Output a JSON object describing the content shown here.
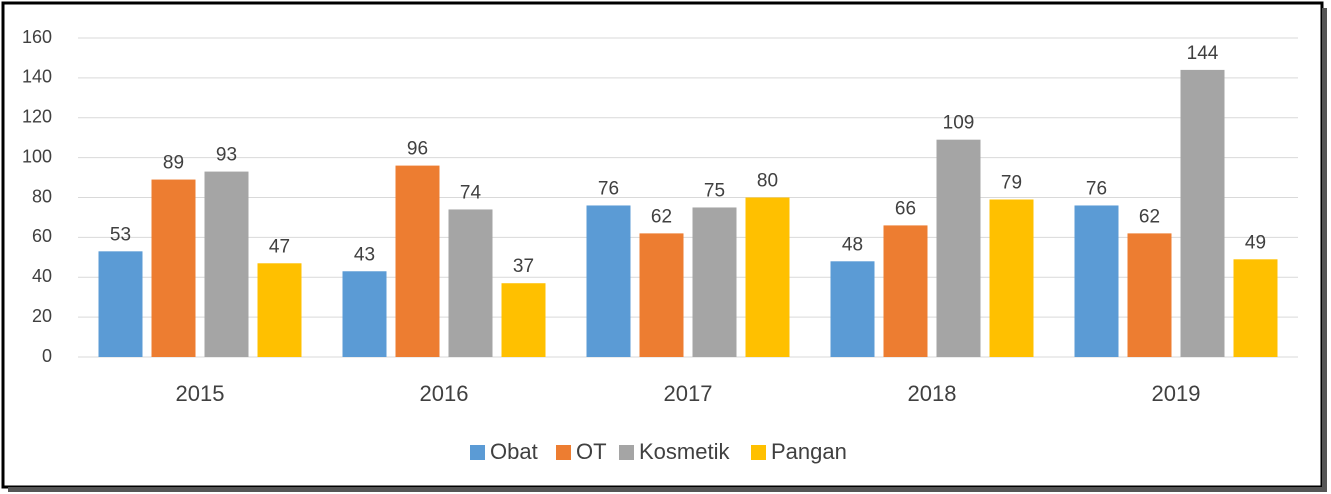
{
  "chart_data": {
    "type": "bar",
    "categories": [
      "2015",
      "2016",
      "2017",
      "2018",
      "2019"
    ],
    "series": [
      {
        "name": "Obat",
        "color": "#5b9bd5",
        "values": [
          53,
          43,
          76,
          48,
          76
        ]
      },
      {
        "name": "OT",
        "color": "#ed7d31",
        "values": [
          89,
          96,
          62,
          66,
          62
        ]
      },
      {
        "name": "Kosmetik",
        "color": "#a5a5a5",
        "values": [
          93,
          74,
          75,
          109,
          144
        ]
      },
      {
        "name": "Pangan",
        "color": "#ffc000",
        "values": [
          47,
          37,
          80,
          79,
          49
        ]
      }
    ],
    "ylim": [
      0,
      160
    ],
    "yticks": [
      0,
      20,
      40,
      60,
      80,
      100,
      120,
      140,
      160
    ],
    "grid": true,
    "legend": "bottom"
  }
}
